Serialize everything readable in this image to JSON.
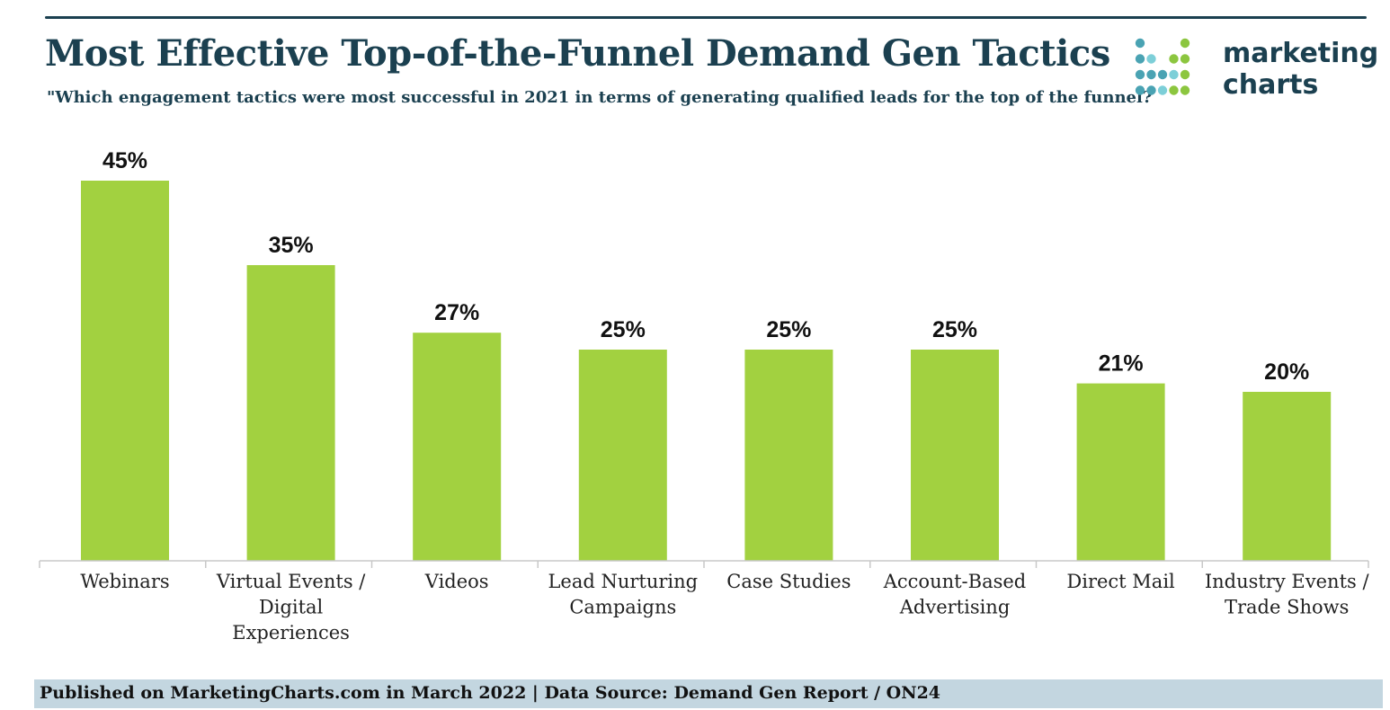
{
  "header": {
    "title": "Most Effective Top-of-the-Funnel Demand Gen Tactics",
    "subtitle": "\"Which engagement tactics were most successful in 2021 in terms of generating qualified leads for the top of the funnel?"
  },
  "logo": {
    "line1": "marketing",
    "line2": "charts",
    "dot_colors": [
      "#4aa3b3",
      "#8cc63f",
      "#7dcfd8"
    ]
  },
  "footer": {
    "text": "Published on MarketingCharts.com in March 2022 | Data Source: Demand Gen Report / ON24"
  },
  "colors": {
    "bar": "#a2d140",
    "title": "#1b4050",
    "footer_band": "#c3d6e0"
  },
  "chart_data": {
    "type": "bar",
    "title": "Most Effective Top-of-the-Funnel Demand Gen Tactics",
    "subtitle": "\"Which engagement tactics were most successful in 2021 in terms of generating qualified leads for the top of the funnel?",
    "categories": [
      [
        "Webinars"
      ],
      [
        "Virtual Events /",
        "Digital",
        "Experiences"
      ],
      [
        "Videos"
      ],
      [
        "Lead Nurturing",
        "Campaigns"
      ],
      [
        "Case Studies"
      ],
      [
        "Account-Based",
        "Advertising"
      ],
      [
        "Direct Mail"
      ],
      [
        "Industry Events /",
        "Trade Shows"
      ]
    ],
    "values": [
      45,
      35,
      27,
      25,
      25,
      25,
      21,
      20
    ],
    "value_labels": [
      "45%",
      "35%",
      "27%",
      "25%",
      "25%",
      "25%",
      "21%",
      "20%"
    ],
    "unit": "%",
    "ylim": [
      0,
      45
    ],
    "grid": false,
    "legend": "none"
  }
}
